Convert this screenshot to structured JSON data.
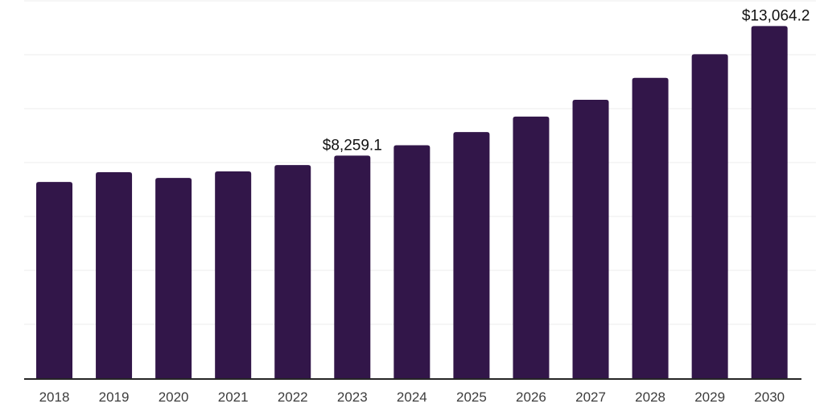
{
  "chart_data": {
    "type": "bar",
    "title": "",
    "xlabel": "",
    "ylabel": "",
    "categories": [
      "2018",
      "2019",
      "2020",
      "2021",
      "2022",
      "2023",
      "2024",
      "2025",
      "2026",
      "2027",
      "2028",
      "2029",
      "2030"
    ],
    "values": [
      7280,
      7640,
      7430,
      7670,
      7905,
      8259.1,
      8640,
      9130,
      9705,
      10330,
      11140,
      12020,
      13064.2
    ],
    "data_labels": [
      {
        "category": "2023",
        "text": "$8,259.1"
      },
      {
        "category": "2030",
        "text": "$13,064.2"
      }
    ],
    "ylim": [
      0,
      14000
    ],
    "gridline_step": 2000,
    "grid": true,
    "legend_position": "none",
    "y_tick_labels_visible": false,
    "colors": {
      "bar": "#321649",
      "axis_line": "#262626",
      "gridline": "#ececec",
      "tick_label": "#3d3d3d",
      "data_label": "#111111",
      "background": "#ffffff"
    }
  }
}
